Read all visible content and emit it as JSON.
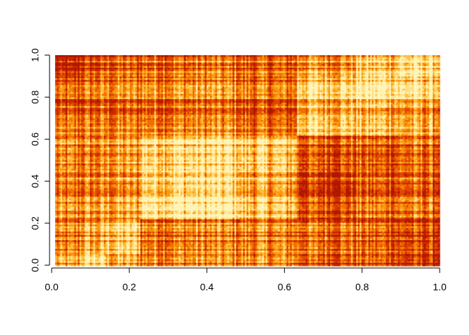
{
  "chart_data": {
    "type": "heatmap",
    "title": "",
    "xlabel": "",
    "ylabel": "",
    "xlim": [
      0,
      1
    ],
    "ylim": [
      0,
      1
    ],
    "x_ticks": [
      "0.0",
      "0.2",
      "0.4",
      "0.6",
      "0.8",
      "1.0"
    ],
    "y_ticks": [
      "0.0",
      "0.2",
      "0.4",
      "0.6",
      "0.8",
      "1.0"
    ],
    "palette": "heat",
    "colors": [
      "#b01800",
      "#cc2b00",
      "#e04800",
      "#f07000",
      "#f89a10",
      "#ffc040",
      "#ffe08a",
      "#fff4b8"
    ],
    "x_breaks": [
      0.0,
      0.065,
      0.13,
      0.22,
      0.48,
      0.63,
      0.78,
      0.89,
      1.0
    ],
    "y_breaks": [
      0.0,
      0.06,
      0.22,
      0.45,
      0.62,
      0.76,
      0.9,
      1.0
    ],
    "block_levels": [
      [
        0.45,
        0.7,
        0.5,
        0.4,
        0.4,
        0.25,
        0.25,
        0.1
      ],
      [
        0.4,
        0.55,
        0.7,
        0.45,
        0.45,
        0.4,
        0.35,
        0.25
      ],
      [
        0.45,
        0.5,
        0.55,
        0.85,
        0.65,
        0.3,
        0.4,
        0.4
      ],
      [
        0.45,
        0.45,
        0.55,
        0.8,
        0.7,
        0.35,
        0.35,
        0.4
      ],
      [
        0.35,
        0.4,
        0.4,
        0.45,
        0.35,
        0.7,
        0.65,
        0.55
      ],
      [
        0.25,
        0.35,
        0.4,
        0.45,
        0.35,
        0.7,
        0.8,
        0.7
      ],
      [
        0.1,
        0.3,
        0.4,
        0.45,
        0.4,
        0.6,
        0.75,
        0.85
      ]
    ]
  }
}
